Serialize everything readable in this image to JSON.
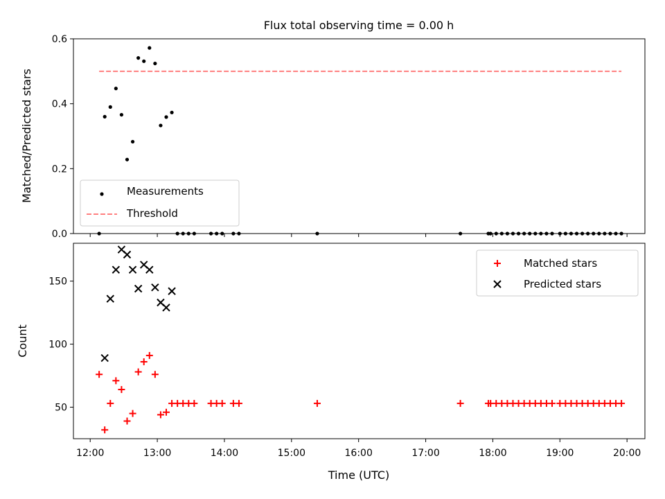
{
  "figure": {
    "title": "Flux total observing time = 0.00 h"
  },
  "chart_data": [
    {
      "type": "scatter",
      "title": "Flux total observing time = 0.00 h",
      "xlabel": "",
      "ylabel": "Matched/Predicted stars",
      "ylim": [
        0,
        0.6
      ],
      "yticks": [
        "0.0",
        "0.2",
        "0.4",
        "0.6"
      ],
      "legend": {
        "position": "lower-left",
        "entries": [
          "Measurements",
          "Threshold"
        ]
      },
      "series": [
        {
          "name": "Measurements",
          "marker": "dot",
          "color": "#000000",
          "points": [
            [
              "12:08",
              0.0
            ],
            [
              "12:13",
              0.36
            ],
            [
              "12:18",
              0.39
            ],
            [
              "12:23",
              0.447
            ],
            [
              "12:28",
              0.366
            ],
            [
              "12:33",
              0.228
            ],
            [
              "12:38",
              0.283
            ],
            [
              "12:43",
              0.541
            ],
            [
              "12:48",
              0.531
            ],
            [
              "12:53",
              0.572
            ],
            [
              "12:58",
              0.524
            ],
            [
              "13:03",
              0.333
            ],
            [
              "13:08",
              0.359
            ],
            [
              "13:13",
              0.373
            ],
            [
              "13:18",
              0.0
            ],
            [
              "13:23",
              0.0
            ],
            [
              "13:28",
              0.0
            ],
            [
              "13:33",
              0.0
            ],
            [
              "13:48",
              0.0
            ],
            [
              "13:53",
              0.0
            ],
            [
              "13:58",
              0.0
            ],
            [
              "14:08",
              0.0
            ],
            [
              "14:13",
              0.0
            ],
            [
              "15:23",
              0.0
            ],
            [
              "17:31",
              0.0
            ],
            [
              "17:56",
              0.0
            ],
            [
              "17:58",
              0.0
            ],
            [
              "18:03",
              0.0
            ],
            [
              "18:08",
              0.0
            ],
            [
              "18:13",
              0.0
            ],
            [
              "18:18",
              0.0
            ],
            [
              "18:23",
              0.0
            ],
            [
              "18:28",
              0.0
            ],
            [
              "18:33",
              0.0
            ],
            [
              "18:38",
              0.0
            ],
            [
              "18:43",
              0.0
            ],
            [
              "18:48",
              0.0
            ],
            [
              "18:53",
              0.0
            ],
            [
              "19:00",
              0.0
            ],
            [
              "19:05",
              0.0
            ],
            [
              "19:10",
              0.0
            ],
            [
              "19:15",
              0.0
            ],
            [
              "19:20",
              0.0
            ],
            [
              "19:25",
              0.0
            ],
            [
              "19:30",
              0.0
            ],
            [
              "19:35",
              0.0
            ],
            [
              "19:40",
              0.0
            ],
            [
              "19:45",
              0.0
            ],
            [
              "19:50",
              0.0
            ],
            [
              "19:55",
              0.0
            ]
          ]
        },
        {
          "name": "Threshold",
          "style": "dashed-line",
          "color": "#ff7f7f",
          "points": [
            [
              "12:08",
              0.5
            ],
            [
              "19:55",
              0.5
            ]
          ]
        }
      ]
    },
    {
      "type": "scatter",
      "xlabel": "Time (UTC)",
      "ylabel": "Count",
      "ylim": [
        25,
        180
      ],
      "yticks": [
        "50",
        "100",
        "150"
      ],
      "xlim": [
        "11:45",
        "20:16"
      ],
      "xticks": [
        "12:00",
        "13:00",
        "14:00",
        "15:00",
        "16:00",
        "17:00",
        "18:00",
        "19:00",
        "20:00"
      ],
      "legend": {
        "position": "upper-right",
        "entries": [
          "Matched stars",
          "Predicted stars"
        ]
      },
      "series": [
        {
          "name": "Matched stars",
          "marker": "plus",
          "color": "#ff0000",
          "points": [
            [
              "12:08",
              76
            ],
            [
              "12:13",
              32
            ],
            [
              "12:18",
              53
            ],
            [
              "12:23",
              71
            ],
            [
              "12:28",
              64
            ],
            [
              "12:33",
              39
            ],
            [
              "12:38",
              45
            ],
            [
              "12:43",
              78
            ],
            [
              "12:48",
              86
            ],
            [
              "12:53",
              91
            ],
            [
              "12:58",
              76
            ],
            [
              "13:03",
              44
            ],
            [
              "13:08",
              46
            ],
            [
              "13:13",
              53
            ],
            [
              "13:18",
              53
            ],
            [
              "13:23",
              53
            ],
            [
              "13:28",
              53
            ],
            [
              "13:33",
              53
            ],
            [
              "13:48",
              53
            ],
            [
              "13:53",
              53
            ],
            [
              "13:58",
              53
            ],
            [
              "14:08",
              53
            ],
            [
              "14:13",
              53
            ],
            [
              "15:23",
              53
            ],
            [
              "17:31",
              53
            ],
            [
              "17:56",
              53
            ],
            [
              "17:58",
              53
            ],
            [
              "18:03",
              53
            ],
            [
              "18:08",
              53
            ],
            [
              "18:13",
              53
            ],
            [
              "18:18",
              53
            ],
            [
              "18:23",
              53
            ],
            [
              "18:28",
              53
            ],
            [
              "18:33",
              53
            ],
            [
              "18:38",
              53
            ],
            [
              "18:43",
              53
            ],
            [
              "18:48",
              53
            ],
            [
              "18:53",
              53
            ],
            [
              "19:00",
              53
            ],
            [
              "19:05",
              53
            ],
            [
              "19:10",
              53
            ],
            [
              "19:15",
              53
            ],
            [
              "19:20",
              53
            ],
            [
              "19:25",
              53
            ],
            [
              "19:30",
              53
            ],
            [
              "19:35",
              53
            ],
            [
              "19:40",
              53
            ],
            [
              "19:45",
              53
            ],
            [
              "19:50",
              53
            ],
            [
              "19:55",
              53
            ]
          ]
        },
        {
          "name": "Predicted stars",
          "marker": "x",
          "color": "#000000",
          "points": [
            [
              "12:13",
              89
            ],
            [
              "12:18",
              136
            ],
            [
              "12:23",
              159
            ],
            [
              "12:28",
              175
            ],
            [
              "12:33",
              171
            ],
            [
              "12:38",
              159
            ],
            [
              "12:43",
              144
            ],
            [
              "12:48",
              163
            ],
            [
              "12:53",
              159
            ],
            [
              "12:58",
              145
            ],
            [
              "13:03",
              133
            ],
            [
              "13:08",
              129
            ],
            [
              "13:13",
              142
            ]
          ]
        }
      ]
    }
  ]
}
